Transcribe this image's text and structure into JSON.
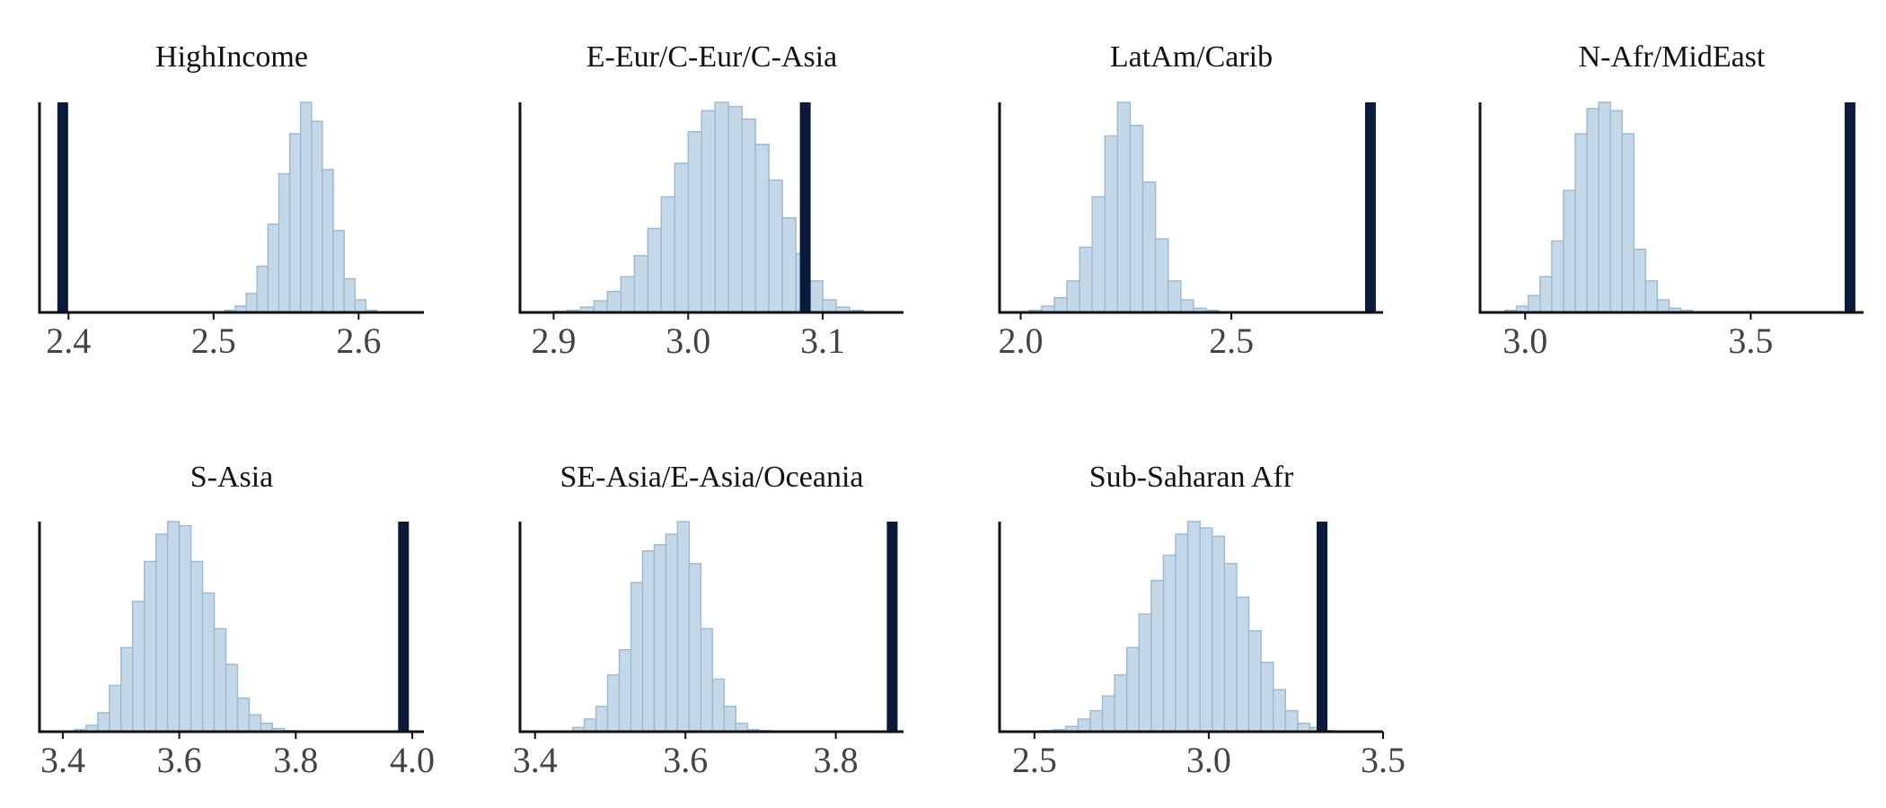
{
  "colors": {
    "bar_fill": "#c4d8e7",
    "bar_edge": "#9dbbd4",
    "observed_line": "#0b1a3b",
    "axis": "#111111"
  },
  "chart_data": [
    {
      "type": "histogram",
      "title": "HighIncome",
      "xlim": [
        2.38,
        2.645
      ],
      "xticks": [
        2.4,
        2.5,
        2.6
      ],
      "tick_labels": [
        "2.4",
        "2.5",
        "2.6"
      ],
      "observed": 2.396,
      "bin_start": 2.5075,
      "bin_width": 0.0075,
      "counts": [
        1,
        3,
        9,
        22,
        42,
        66,
        85,
        100,
        91,
        68,
        39,
        16,
        6,
        1
      ],
      "grid": false,
      "legend": "none"
    },
    {
      "type": "histogram",
      "title": "E-Eur/C-Eur/C-Asia",
      "xlim": [
        2.875,
        3.16
      ],
      "xticks": [
        2.9,
        3.0,
        3.1
      ],
      "tick_labels": [
        "2.9",
        "3.0",
        "3.1"
      ],
      "observed": 3.087,
      "bin_start": 2.9,
      "bin_width": 0.01,
      "counts": [
        0.5,
        1,
        2.5,
        5.5,
        10,
        17,
        27,
        40,
        55,
        71,
        86,
        96,
        100,
        98,
        92,
        80,
        63,
        45,
        28,
        15,
        6,
        2.5,
        1
      ],
      "grid": false,
      "legend": "none"
    },
    {
      "type": "histogram",
      "title": "LatAm/Carib",
      "xlim": [
        1.95,
        2.86
      ],
      "xticks": [
        2.0,
        2.5
      ],
      "tick_labels": [
        "2.0",
        "2.5"
      ],
      "observed": 2.83,
      "bin_start": 2.02,
      "bin_width": 0.03,
      "counts": [
        1,
        3,
        7,
        15,
        31,
        55,
        84,
        100,
        89,
        62,
        35,
        15,
        6,
        2,
        1
      ],
      "grid": false,
      "legend": "none"
    },
    {
      "type": "histogram",
      "title": "N-Afr/MidEast",
      "xlim": [
        2.9,
        3.75
      ],
      "xticks": [
        3.0,
        3.5
      ],
      "tick_labels": [
        "3.0",
        "3.5"
      ],
      "observed": 3.72,
      "bin_start": 2.955,
      "bin_width": 0.026,
      "counts": [
        1,
        3,
        8,
        17,
        34,
        58,
        85,
        97,
        100,
        96,
        85,
        30,
        15,
        6,
        2,
        1
      ],
      "grid": false,
      "legend": "none"
    },
    {
      "type": "histogram",
      "title": "S-Asia",
      "xlim": [
        3.36,
        4.02
      ],
      "xticks": [
        3.4,
        3.6,
        3.8,
        4.0
      ],
      "tick_labels": [
        "3.4",
        "3.6",
        "3.8",
        "4.0"
      ],
      "observed": 3.985,
      "bin_start": 3.42,
      "bin_width": 0.02,
      "counts": [
        1,
        3,
        9,
        22,
        40,
        62,
        81,
        94,
        100,
        98,
        81,
        66,
        49,
        32,
        16,
        8,
        4,
        1.5,
        0.5
      ],
      "grid": false,
      "legend": "none"
    },
    {
      "type": "histogram",
      "title": "SE-Asia/E-Asia/Oceania",
      "xlim": [
        3.38,
        3.89
      ],
      "xticks": [
        3.4,
        3.6,
        3.8
      ],
      "tick_labels": [
        "3.4",
        "3.6",
        "3.8"
      ],
      "observed": 3.875,
      "bin_start": 3.45,
      "bin_width": 0.0155,
      "counts": [
        2,
        6,
        12,
        27,
        39,
        71,
        86,
        89,
        94,
        100,
        80,
        49,
        25,
        12,
        4,
        1,
        0.5
      ],
      "grid": false,
      "legend": "none"
    },
    {
      "type": "histogram",
      "title": "Sub-Saharan Afr",
      "xlim": [
        2.4,
        3.5
      ],
      "xticks": [
        2.5,
        3.0,
        3.5
      ],
      "tick_labels": [
        "2.5",
        "3.0",
        "3.5"
      ],
      "observed": 3.325,
      "bin_start": 2.52,
      "bin_width": 0.035,
      "counts": [
        0.5,
        1,
        2.5,
        6,
        10,
        17,
        27,
        40,
        56,
        72,
        84,
        94,
        100,
        97,
        93,
        80,
        64,
        48,
        33,
        20,
        10,
        4,
        2,
        0.5
      ],
      "grid": false,
      "legend": "none"
    }
  ]
}
